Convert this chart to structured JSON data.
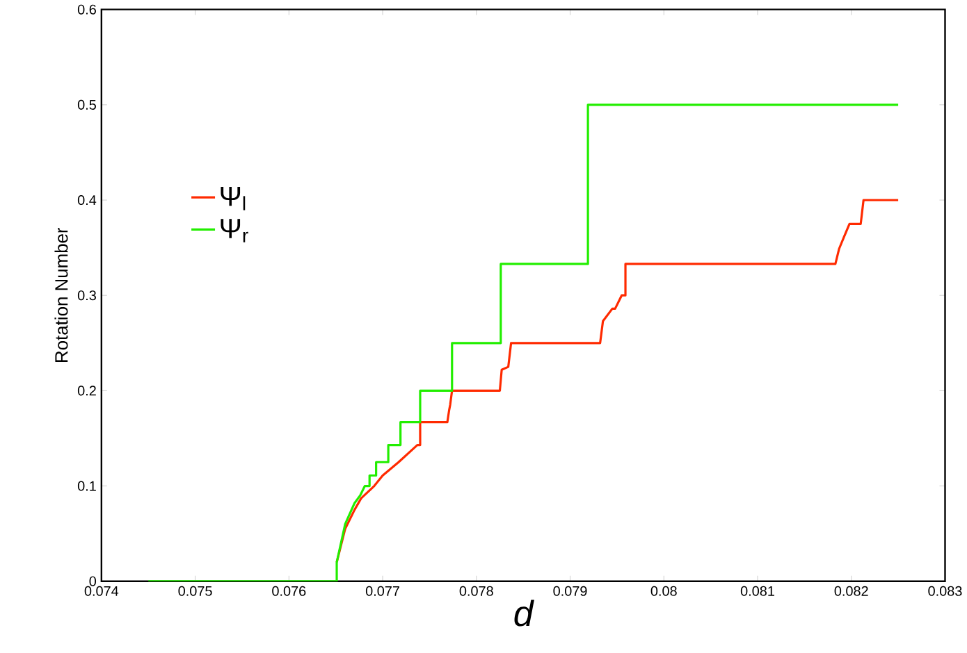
{
  "chart_data": {
    "type": "line",
    "xlabel": "d",
    "ylabel": "Rotation Number",
    "xlim": [
      0.074,
      0.083
    ],
    "ylim": [
      0,
      0.6
    ],
    "xticks": [
      0.074,
      0.075,
      0.076,
      0.077,
      0.078,
      0.079,
      0.08,
      0.081,
      0.082,
      0.083
    ],
    "yticks": [
      0,
      0.1,
      0.2,
      0.3,
      0.4,
      0.5,
      0.6
    ],
    "legend": "top left",
    "grid": false,
    "marker": "none",
    "line_style": "solid",
    "series": [
      {
        "name": "Ψ$_{l}$",
        "color": "#ff2a00",
        "x": [
          0.07651,
          0.0766,
          0.0767,
          0.07677,
          0.07691,
          0.07691,
          0.077,
          0.077,
          0.07717,
          0.07717,
          0.07737,
          0.0774,
          0.0774,
          0.07769,
          0.07771,
          0.07772,
          0.07774,
          0.07825,
          0.07827,
          0.07834,
          0.07837,
          0.07932,
          0.07935,
          0.07945,
          0.07948,
          0.07955,
          0.07957,
          0.07959,
          0.07959,
          0.08183,
          0.08187,
          0.08192,
          0.08198,
          0.0821,
          0.08213,
          0.0825
        ],
        "values": [
          0.02,
          0.055,
          0.075,
          0.087,
          0.1,
          0.1,
          0.111,
          0.111,
          0.125,
          0.125,
          0.143,
          0.143,
          0.167,
          0.167,
          0.18,
          0.185,
          0.2,
          0.2,
          0.222,
          0.225,
          0.25,
          0.25,
          0.273,
          0.286,
          0.286,
          0.3,
          0.3,
          0.3,
          0.333,
          0.333,
          0.349,
          0.361,
          0.375,
          0.375,
          0.4,
          0.4
        ]
      },
      {
        "name": "Ψ$_{r}$",
        "color": "#22ee00",
        "x": [
          0.0745,
          0.07651,
          0.07651,
          0.0766,
          0.0767,
          0.07676,
          0.07681,
          0.07686,
          0.07686,
          0.07693,
          0.07693,
          0.07706,
          0.07706,
          0.07719,
          0.07719,
          0.0774,
          0.0774,
          0.07774,
          0.07774,
          0.07826,
          0.07826,
          0.07919,
          0.07919,
          0.0825
        ],
        "values": [
          0,
          0,
          0.02,
          0.06,
          0.082,
          0.09,
          0.1,
          0.1,
          0.111,
          0.111,
          0.125,
          0.125,
          0.143,
          0.143,
          0.167,
          0.167,
          0.2,
          0.2,
          0.25,
          0.25,
          0.333,
          0.333,
          0.5,
          0.5
        ]
      }
    ]
  }
}
